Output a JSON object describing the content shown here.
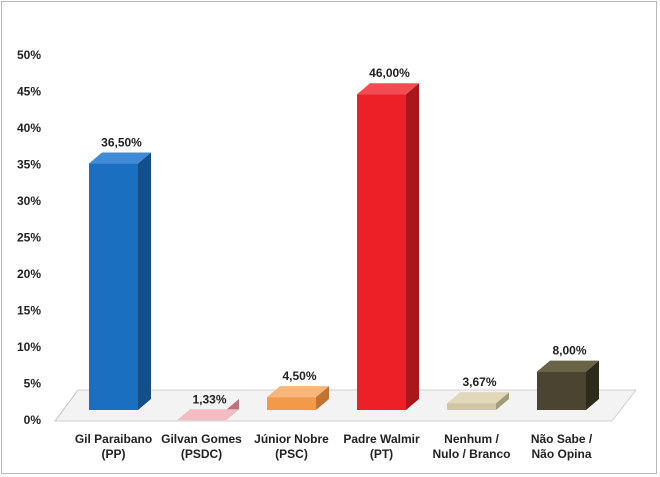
{
  "chart_data": {
    "type": "bar",
    "categories": [
      [
        "Gil Paraibano",
        "(PP)"
      ],
      [
        "Gilvan Gomes",
        "(PSDC)"
      ],
      [
        "Júnior Nobre",
        "(PSC)"
      ],
      [
        "Padre Walmir",
        "(PT)"
      ],
      [
        "Nenhum /",
        "Nulo / Branco"
      ],
      [
        "Não Sabe /",
        "Não Opina"
      ]
    ],
    "values": [
      36.5,
      1.33,
      4.5,
      46.0,
      3.67,
      8.0
    ],
    "data_labels": [
      "36,50%",
      "1,33%",
      "4,50%",
      "46,00%",
      "3,67%",
      "8,00%"
    ],
    "ylim": [
      0,
      50
    ],
    "yticks": [
      "0%",
      "5%",
      "10%",
      "15%",
      "20%",
      "25%",
      "30%",
      "35%",
      "40%",
      "45%",
      "50%"
    ],
    "colors": {
      "front": [
        "#1b6fc0",
        "#e8a0a6",
        "#f29a4a",
        "#ee2027",
        "#cfc6a2",
        "#4a4530"
      ],
      "side": [
        "#134f8a",
        "#b97279",
        "#c2732f",
        "#a9161b",
        "#a39a78",
        "#2e2a1c"
      ],
      "top": [
        "#3f8bd6",
        "#f2bcc1",
        "#f6b57a",
        "#f24b51",
        "#e0d8b8",
        "#6a6447"
      ]
    },
    "grid": false,
    "style": "3d-column"
  }
}
